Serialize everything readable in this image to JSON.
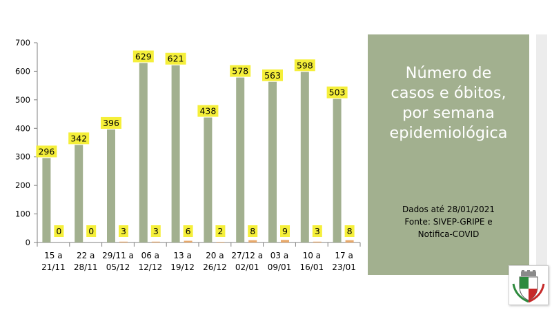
{
  "chart_data": {
    "type": "bar",
    "categories": [
      [
        "15 a",
        "21/11"
      ],
      [
        "22 a",
        "28/11"
      ],
      [
        "29/11 a",
        "05/12"
      ],
      [
        "06 a",
        "12/12"
      ],
      [
        "13 a",
        "19/12"
      ],
      [
        "20 a",
        "26/12"
      ],
      [
        "27/12 a",
        "02/01"
      ],
      [
        "03 a",
        "09/01"
      ],
      [
        "10 a",
        "16/01"
      ],
      [
        "17 a",
        "23/01"
      ]
    ],
    "series": [
      {
        "values": [
          296,
          342,
          396,
          629,
          621,
          438,
          578,
          563,
          598,
          503
        ],
        "color": "#a2b08f"
      },
      {
        "values": [
          0,
          0,
          3,
          3,
          6,
          2,
          8,
          9,
          3,
          8
        ],
        "color": "#e8a96b"
      }
    ],
    "ylim": [
      0,
      700
    ],
    "yticks": [
      0,
      100,
      200,
      300,
      400,
      500,
      600,
      700
    ],
    "data_label_background": "#f5ef3a",
    "grid": false,
    "legend": "none"
  },
  "panel": {
    "title_lines": [
      "Número de",
      "casos e óbitos,",
      "por semana",
      "epidemiológica"
    ],
    "note_lines": [
      "Dados até 28/01/2021",
      "Fonte: SIVEP-GRIPE e",
      "Notifica-COVID"
    ]
  },
  "logo": {
    "icon": "municipal-coat-of-arms-icon"
  }
}
